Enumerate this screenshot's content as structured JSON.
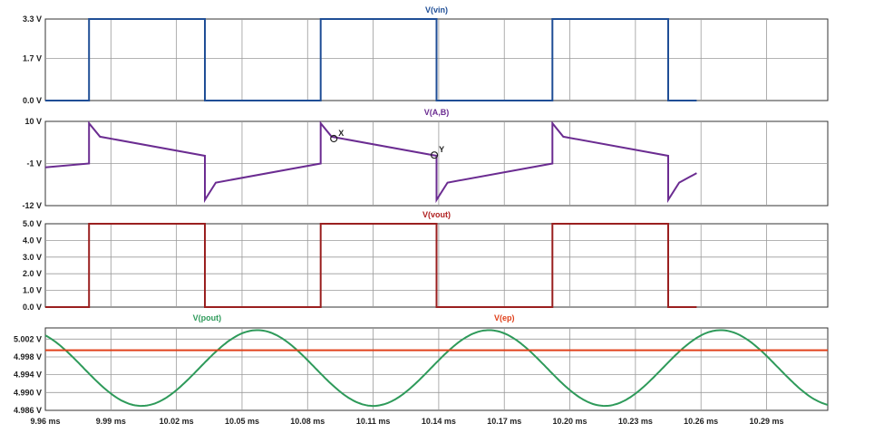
{
  "chart_data": [
    {
      "type": "line",
      "title": "V(vin)",
      "title_color": "#1f4e96",
      "ylim": [
        0,
        3.3
      ],
      "yticks": [
        {
          "v": 0,
          "label": "0.0 V"
        },
        {
          "v": 1.7,
          "label": "1.7 V"
        },
        {
          "v": 3.3,
          "label": "3.3 V"
        }
      ],
      "series": [
        {
          "color": "#1f4e96",
          "points": [
            [
              9.96,
              0
            ],
            [
              9.98,
              0
            ],
            [
              9.98,
              3.3
            ],
            [
              10.033,
              3.3
            ],
            [
              10.033,
              0
            ],
            [
              10.086,
              0
            ],
            [
              10.086,
              3.3
            ],
            [
              10.139,
              3.3
            ],
            [
              10.139,
              0
            ],
            [
              10.192,
              0
            ],
            [
              10.192,
              3.3
            ],
            [
              10.245,
              3.3
            ],
            [
              10.245,
              0
            ],
            [
              10.258,
              0
            ]
          ]
        }
      ]
    },
    {
      "type": "line",
      "title": "V(A,B)",
      "title_color": "#6b2c91",
      "ylim": [
        -12,
        10
      ],
      "yticks": [
        {
          "v": -12,
          "label": "-12 V"
        },
        {
          "v": -1,
          "label": "-1 V"
        },
        {
          "v": 10,
          "label": "10 V"
        }
      ],
      "series": [
        {
          "color": "#6b2c91",
          "points": [
            [
              9.96,
              -2
            ],
            [
              9.98,
              -1
            ],
            [
              9.98,
              9.5
            ],
            [
              9.985,
              6
            ],
            [
              10.033,
              1
            ],
            [
              10.033,
              -10.5
            ],
            [
              10.038,
              -6
            ],
            [
              10.086,
              -1
            ],
            [
              10.086,
              9.5
            ],
            [
              10.091,
              6
            ],
            [
              10.139,
              1
            ],
            [
              10.139,
              -10.5
            ],
            [
              10.144,
              -6
            ],
            [
              10.192,
              -1
            ],
            [
              10.192,
              9.5
            ],
            [
              10.197,
              6
            ],
            [
              10.245,
              1
            ],
            [
              10.245,
              -10.5
            ],
            [
              10.25,
              -6
            ],
            [
              10.258,
              -3.5
            ]
          ]
        }
      ],
      "markers": [
        {
          "label": "X",
          "x": 10.092,
          "y": 5.5
        },
        {
          "label": "Y",
          "x": 10.138,
          "y": 1.2
        }
      ]
    },
    {
      "type": "line",
      "title": "V(vout)",
      "title_color": "#b02020",
      "ylim": [
        0,
        5.0
      ],
      "yticks": [
        {
          "v": 0,
          "label": "0.0 V"
        },
        {
          "v": 1,
          "label": "1.0 V"
        },
        {
          "v": 2,
          "label": "2.0 V"
        },
        {
          "v": 3,
          "label": "3.0 V"
        },
        {
          "v": 4,
          "label": "4.0 V"
        },
        {
          "v": 5,
          "label": "5.0 V"
        }
      ],
      "series": [
        {
          "color": "#9a1f1f",
          "points": [
            [
              9.96,
              0
            ],
            [
              9.98,
              0
            ],
            [
              9.98,
              5
            ],
            [
              10.033,
              5
            ],
            [
              10.033,
              0
            ],
            [
              10.086,
              0
            ],
            [
              10.086,
              5
            ],
            [
              10.139,
              5
            ],
            [
              10.139,
              0
            ],
            [
              10.192,
              0
            ],
            [
              10.192,
              5
            ],
            [
              10.245,
              5
            ],
            [
              10.245,
              0
            ],
            [
              10.258,
              0
            ]
          ]
        }
      ]
    },
    {
      "type": "line",
      "titles": [
        {
          "text": "V(pout)",
          "color": "#2e9a5a",
          "x": 10.034
        },
        {
          "text": "V(ep)",
          "color": "#e0401a",
          "x": 10.17
        }
      ],
      "ylim": [
        4.986,
        5.0045
      ],
      "yticks": [
        {
          "v": 4.986,
          "label": "4.986 V"
        },
        {
          "v": 4.99,
          "label": "4.990 V"
        },
        {
          "v": 4.994,
          "label": "4.994 V"
        },
        {
          "v": 4.998,
          "label": "4.998 V"
        },
        {
          "v": 5.002,
          "label": "5.002 V"
        }
      ],
      "series": [
        {
          "name": "V(pout)",
          "color": "#2e9a5a",
          "type": "sine",
          "center": 4.9955,
          "amplitude": 8.5,
          "period_ms": 106,
          "phase_ms": 10.0305
        },
        {
          "name": "V(ep)",
          "color": "#e0401a",
          "type": "flat",
          "value": 4.9995
        }
      ],
      "xticks": [
        {
          "v": 9.96,
          "label": "9.96 ms"
        },
        {
          "v": 9.99,
          "label": "9.99 ms"
        },
        {
          "v": 10.02,
          "label": "10.02 ms"
        },
        {
          "v": 10.05,
          "label": "10.05 ms"
        },
        {
          "v": 10.08,
          "label": "10.08 ms"
        },
        {
          "v": 10.11,
          "label": "10.11 ms"
        },
        {
          "v": 10.14,
          "label": "10.14 ms"
        },
        {
          "v": 10.17,
          "label": "10.17 ms"
        },
        {
          "v": 10.2,
          "label": "10.20 ms"
        },
        {
          "v": 10.23,
          "label": "10.23 ms"
        },
        {
          "v": 10.26,
          "label": "10.26 ms"
        },
        {
          "v": 10.29,
          "label": "10.29 ms"
        }
      ]
    }
  ],
  "x_range": [
    9.96,
    10.318
  ],
  "grid": true
}
